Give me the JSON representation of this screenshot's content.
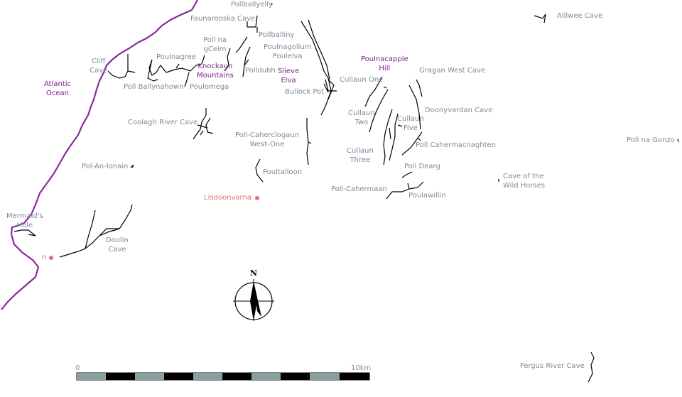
{
  "colors": {
    "coastline": "#8a2a9c",
    "cave_label": "#7d8a97",
    "feature_label": "#7a1f86",
    "town_label": "#e07070",
    "cave_passage": "#000000"
  },
  "labels": {
    "pollballyelly": "Pollballyelly",
    "faunarooska_cave": "Faunarooska Cave",
    "poll_na_gceim": "Poll na\ngCeim",
    "pollballiny": "Pollballiny",
    "poulnagollum_poulelva": "Poulnagollum\nPoulelva",
    "poulnagree": "Poulnagree",
    "cliff_cave": "Cliff\nCave",
    "polldubh": "Polldubh",
    "poll_ballynahown": "Poll Ballynahown",
    "poulomega": "Poulomega",
    "bullock_pot": "Bullock Pot",
    "cullaun_one": "Cullaun One",
    "gragan_west_cave": "Gragan West Cave",
    "doonyvardan_cave": "Doonyvardan Cave",
    "cullaun_two": "Cullaun\nTwo",
    "cullaun_five": "Cullaun\nFive",
    "coolagh_river_cave": "Coolagh River Cave",
    "poll_caherclogaun_west_one": "Poll-Caherclogaun\nWest-One",
    "poll_cahermacnaghten": "Poll Cahermacnaghten",
    "cullaun_three": "Cullaun\nThree",
    "poll_dearg": "Poll Dearg",
    "pol_an_ionain": "Pol-An-Ionain",
    "poultalloon": "Poultalloon",
    "poll_cahermaan": "Poll-Cahermaan",
    "poulawillin": "Poulawillin",
    "cave_of_the_wild_horses": "Cave of the\nWild Horses",
    "mermaids_hole": "Mermaid's\nHole",
    "doolin_cave": "Doolin\nCave",
    "aillwee_cave": "Aillwee Cave",
    "poll_na_gonzo": "Poll na Gonzo",
    "fergus_river_cave": "Fergus River Cave"
  },
  "features": {
    "atlantic_ocean": "Atlantic\nOcean",
    "knockaun_mountains": "Knockaun\nMountains",
    "slieve_elva": "Slieve\nElva",
    "poulnacapple_hill": "Poulnacapple\nHill"
  },
  "towns": {
    "lisdoonvarna": "Lisdoonvarna",
    "doolin_town": "n"
  },
  "scale_bar": {
    "start_label": "0",
    "end_label": "10km",
    "segments": 10
  },
  "compass": {
    "north_label": "N"
  }
}
